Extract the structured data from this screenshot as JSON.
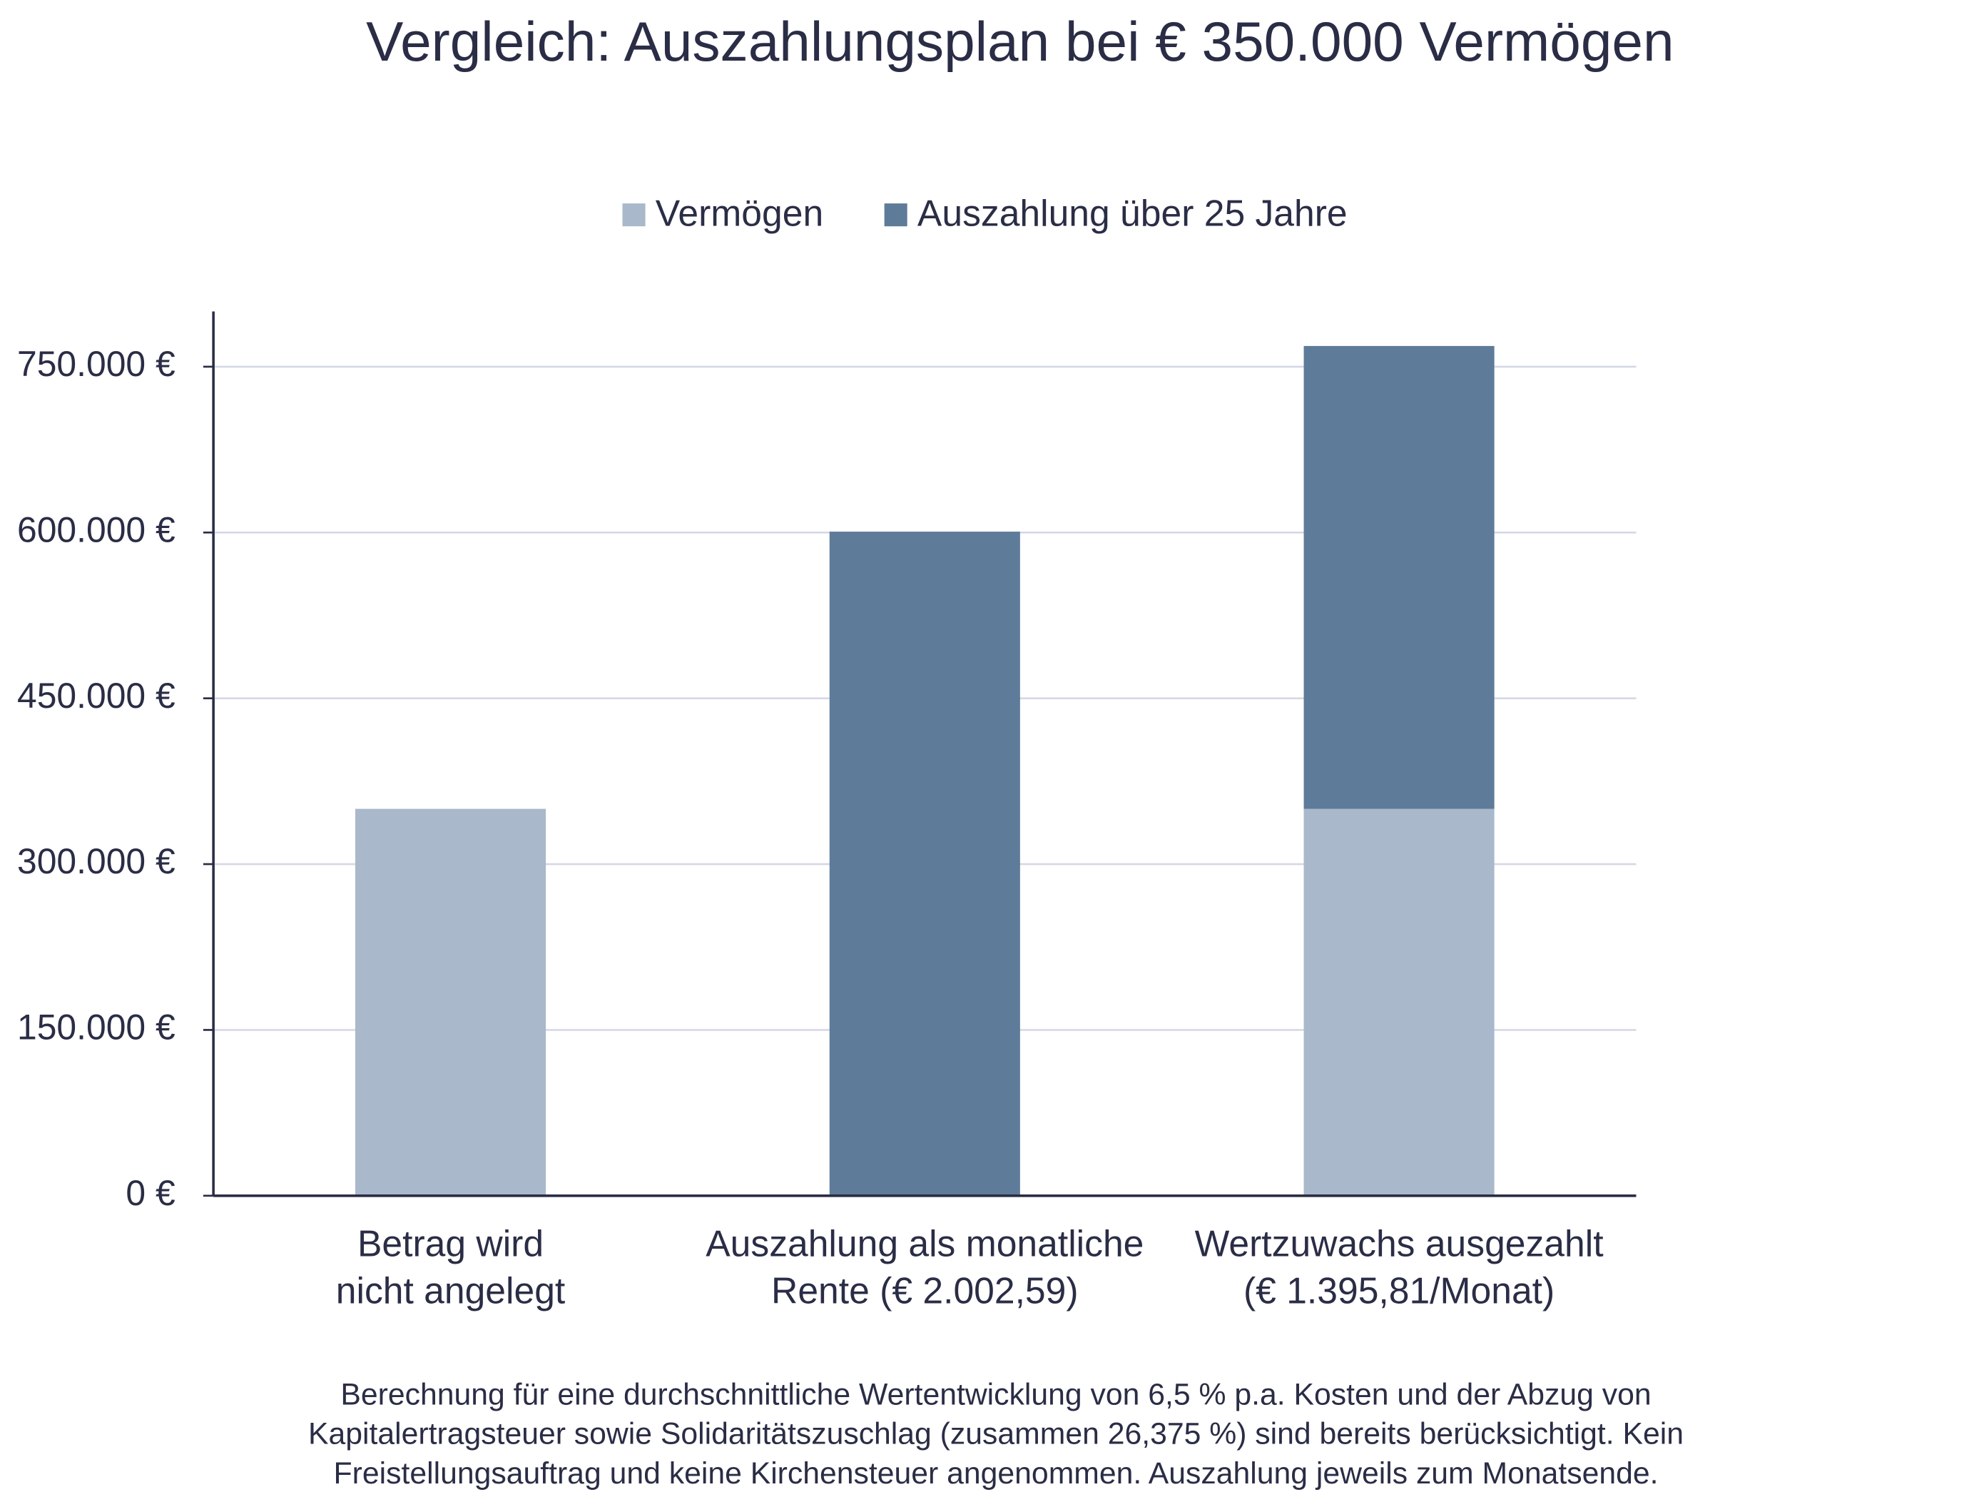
{
  "chart_data": {
    "type": "stacked-bar",
    "title": "Vergleich: Auszahlungsplan bei € 350.000 Vermögen",
    "categories": [
      [
        "Betrag wird",
        "nicht angelegt"
      ],
      [
        "Auszahlung als monatliche",
        "Rente (€ 2.002,59)"
      ],
      [
        "Wertzuwachs ausgezahlt",
        "(€ 1.395,81/Monat)"
      ]
    ],
    "series": [
      {
        "name": "Vermögen",
        "color": "#a9b8ca",
        "values": [
          350000,
          null,
          350000
        ]
      },
      {
        "name": "Auszahlung über 25 Jahre",
        "color": "#5e7b99",
        "values": [
          null,
          600777,
          418743
        ]
      }
    ],
    "ylim": [
      0,
      800000
    ],
    "yticks": [
      {
        "value": 0,
        "label": "0 €"
      },
      {
        "value": 150000,
        "label": "150.000 €"
      },
      {
        "value": 300000,
        "label": "300.000 €"
      },
      {
        "value": 450000,
        "label": "450.000 €"
      },
      {
        "value": 600000,
        "label": "600.000 €"
      },
      {
        "value": 750000,
        "label": "750.000 €"
      }
    ],
    "grid": true,
    "legend": "top",
    "footnote": [
      "Berechnung für eine durchschnittliche Wertentwicklung von 6,5 % p.a. Kosten und der Abzug von",
      "Kapitalertragsteuer sowie Solidaritätszuschlag (zusammen 26,375 %) sind bereits berücksichtigt. Kein",
      "Freistellungsauftrag und keine Kirchensteuer angenommen. Auszahlung jeweils zum Monatsende."
    ]
  }
}
